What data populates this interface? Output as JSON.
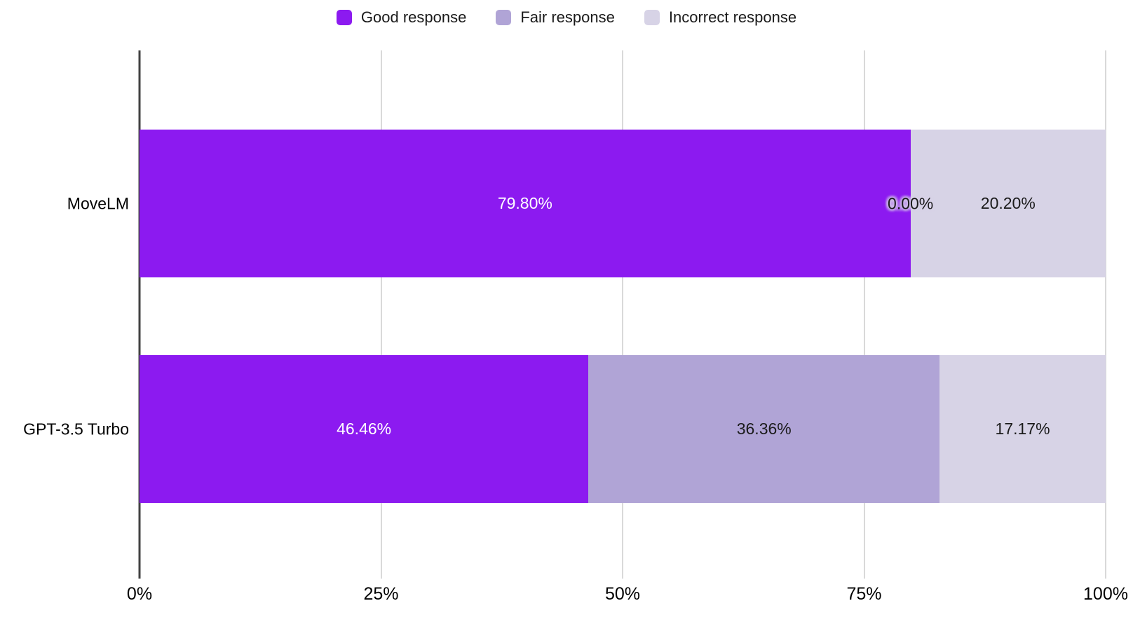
{
  "colors": {
    "background": "#ffffff",
    "axis_line": "#424242",
    "gridline": "#d9d9d9",
    "tick_text": "#000000",
    "category_text": "#000000",
    "legend_text": "#1a1a1a",
    "halo": "#d8d2e8",
    "halo_text": "#1b1b1b"
  },
  "chart_data": {
    "type": "bar",
    "orientation": "horizontal",
    "stacked": true,
    "title": "",
    "xlabel": "",
    "ylabel": "",
    "grid": true,
    "legend_position": "top",
    "categories": [
      "MoveLM",
      "GPT-3.5 Turbo"
    ],
    "series": [
      {
        "name": "Good response",
        "color": "#8c1af0",
        "label_color": "#ffffff",
        "values": [
          79.8,
          46.46
        ]
      },
      {
        "name": "Fair response",
        "color": "#b0a4d6",
        "label_color": "#1b1b1b",
        "values": [
          0.0,
          36.36
        ]
      },
      {
        "name": "Incorrect response",
        "color": "#d7d3e6",
        "label_color": "#1b1b1b",
        "values": [
          20.2,
          17.17
        ]
      }
    ],
    "labels": [
      [
        "79.80%",
        "0.00%",
        "20.20%"
      ],
      [
        "46.46%",
        "36.36%",
        "17.17%"
      ]
    ],
    "x_axis": {
      "min": 0,
      "max": 100,
      "ticks": [
        "0%",
        "25%",
        "50%",
        "75%",
        "100%"
      ],
      "tick_values": [
        0,
        25,
        50,
        75,
        100
      ]
    }
  }
}
